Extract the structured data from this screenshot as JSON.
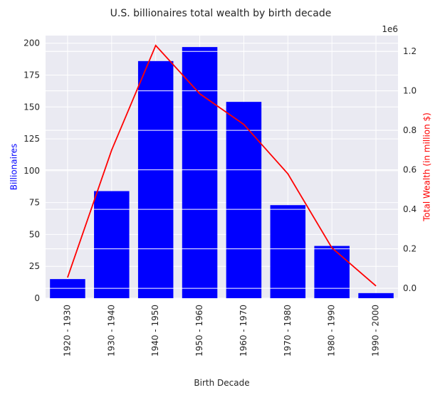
{
  "chart_data": {
    "type": "bar",
    "title": "U.S. billionaires total wealth by birth decade",
    "xlabel": "Birth Decade",
    "ylabel_left": "Billionaires",
    "ylabel_right": "Total Wealth (in million $)",
    "right_axis_offset_label": "1e6",
    "categories": [
      "1920 - 1930",
      "1930 - 1940",
      "1940 - 1950",
      "1950 - 1960",
      "1960 - 1970",
      "1970 - 1980",
      "1980 - 1990",
      "1990 - 2000"
    ],
    "series": [
      {
        "name": "Billionaires",
        "type": "bar",
        "axis": "left",
        "color": "#0000ff",
        "values": [
          15,
          84,
          186,
          197,
          154,
          73,
          41,
          4
        ]
      },
      {
        "name": "Total Wealth (in million $)",
        "type": "line",
        "axis": "right",
        "color": "#ff0000",
        "values": [
          55000,
          700000,
          1230000,
          985000,
          830000,
          580000,
          205000,
          12000
        ]
      }
    ],
    "ylim_left": [
      0,
      206
    ],
    "ylim_right": [
      -50000,
      1280000
    ],
    "yticks_left": [
      0,
      25,
      50,
      75,
      100,
      125,
      150,
      175,
      200
    ],
    "yticks_right": [
      "0.0",
      "0.2",
      "0.4",
      "0.6",
      "0.8",
      "1.0",
      "1.2"
    ],
    "grid": true,
    "colors": {
      "plot_background": "#eaeaf2",
      "grid": "#ffffff",
      "left_axis_label": "#0000ff",
      "right_axis_label": "#ff0000",
      "text": "#262626"
    }
  }
}
